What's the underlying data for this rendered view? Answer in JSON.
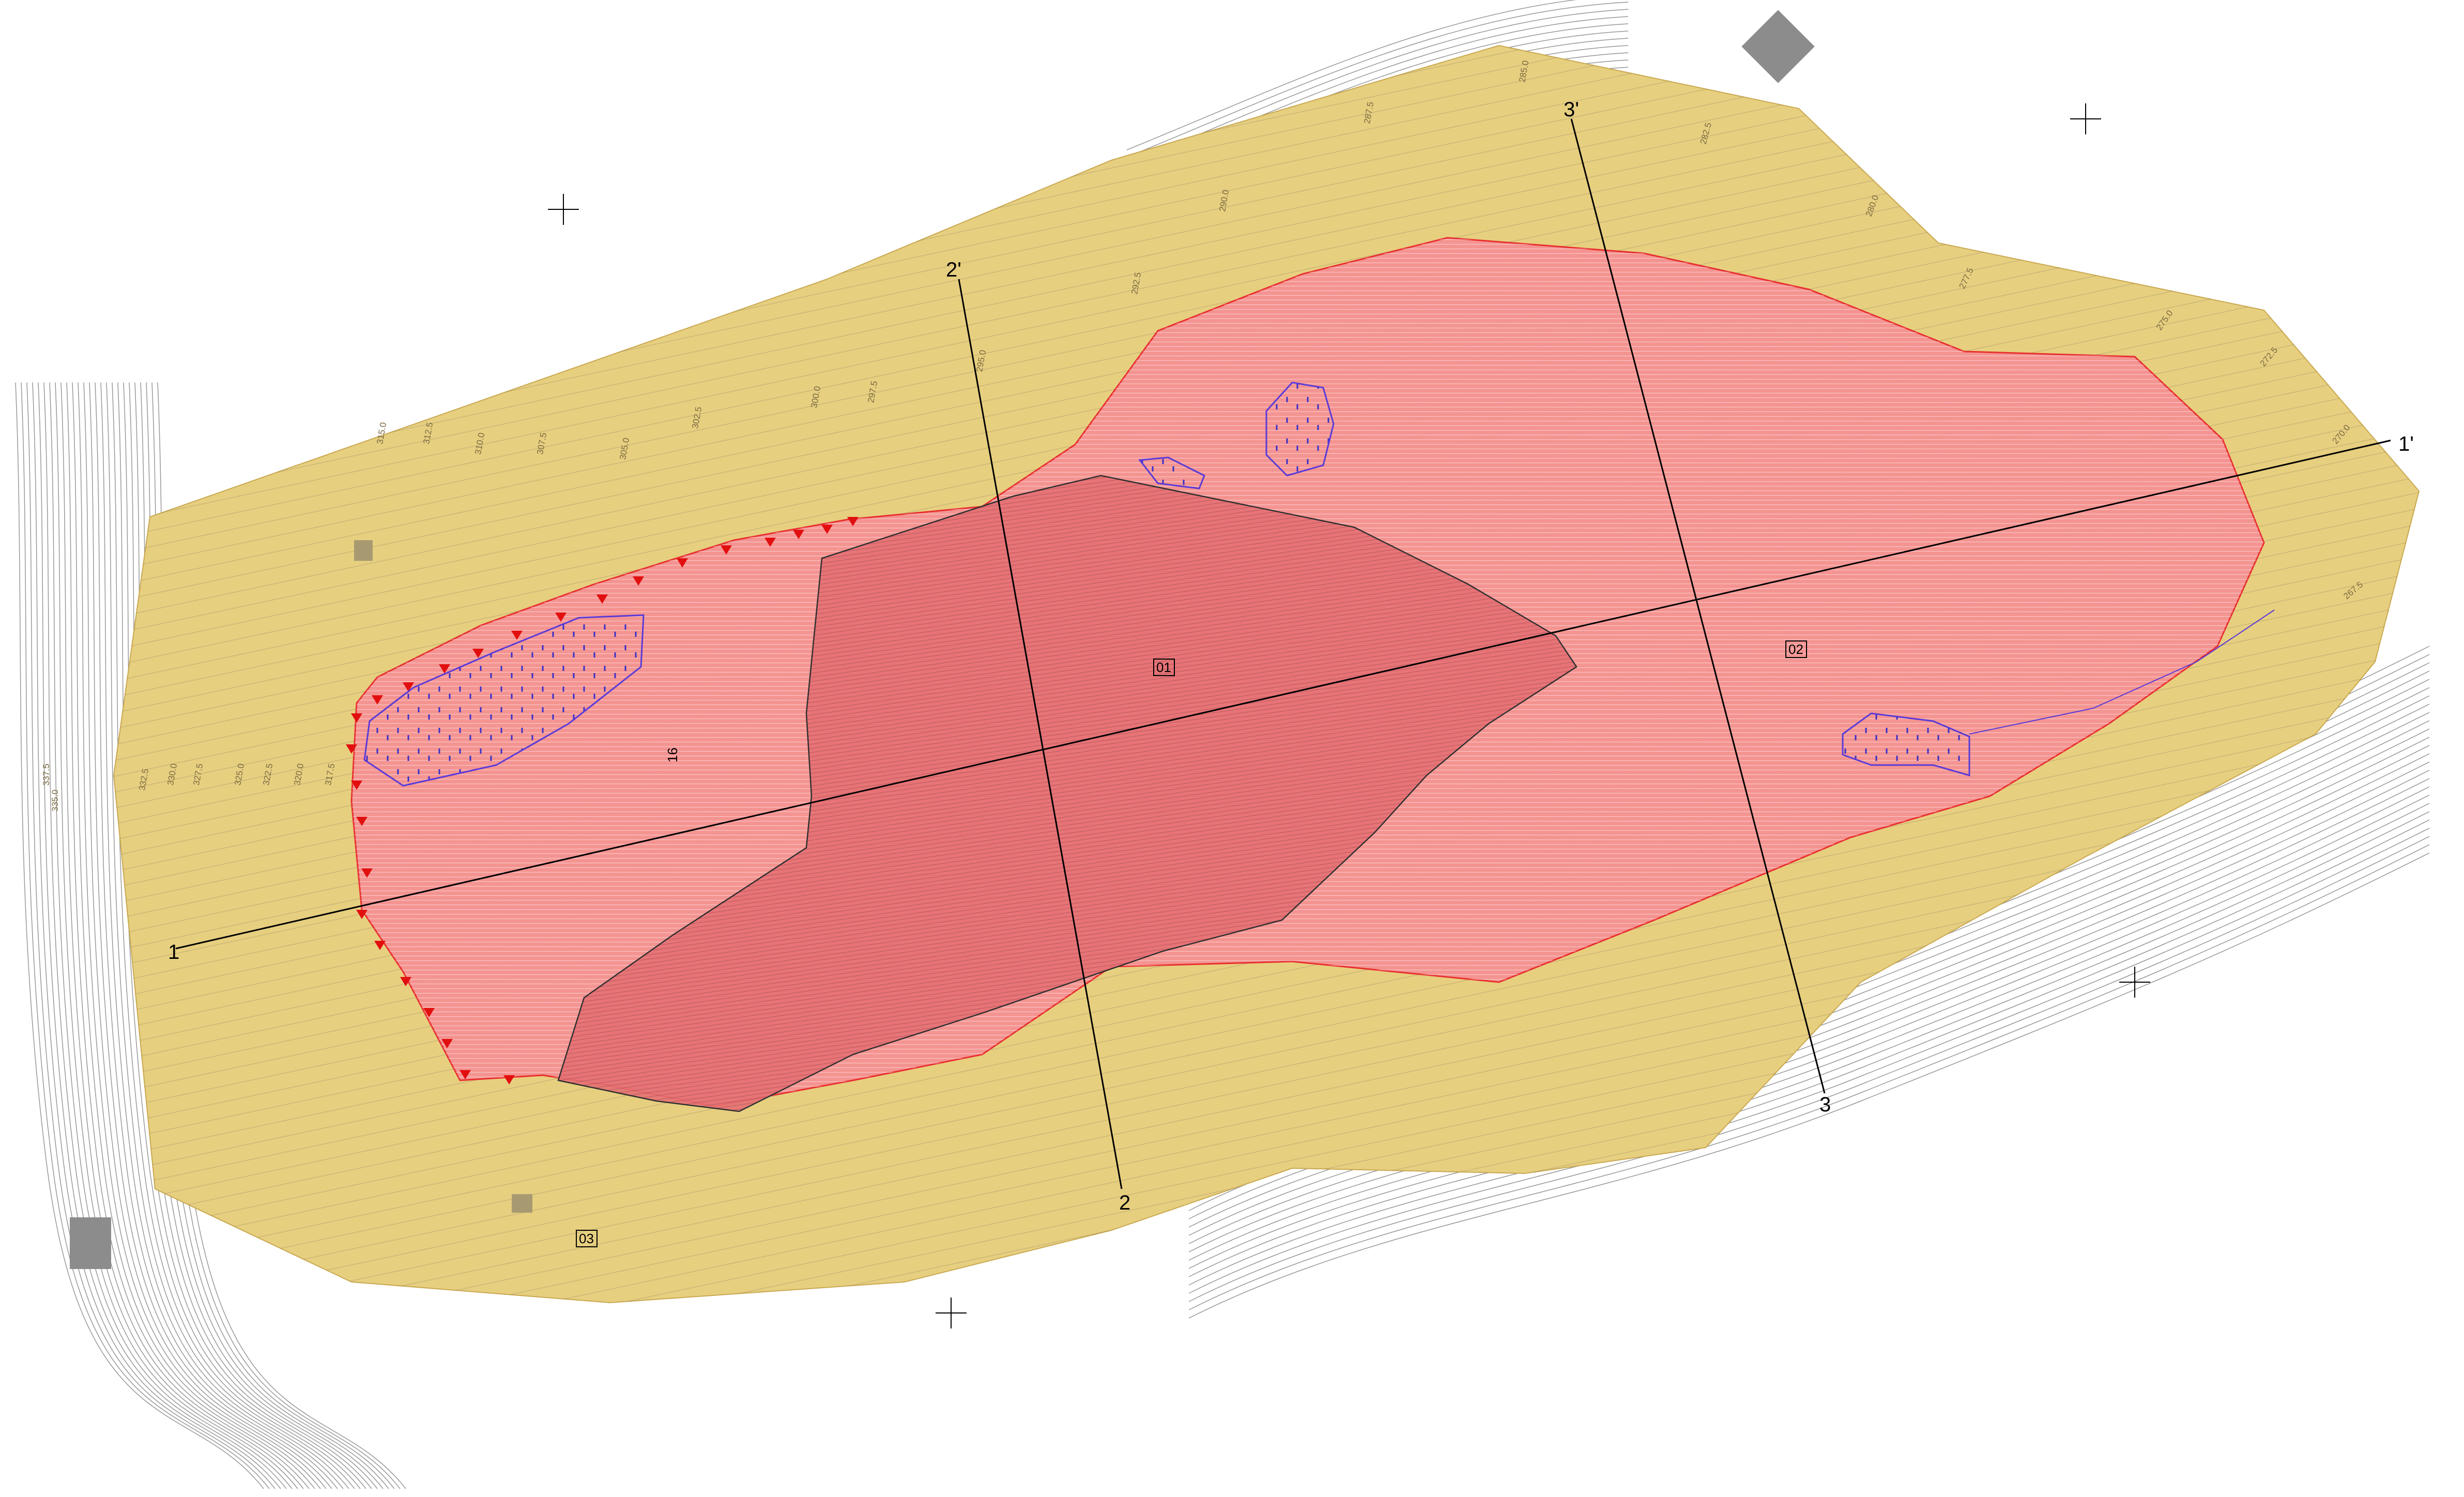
{
  "colors": {
    "background": "#ffffff",
    "buffer_zone": "#e7cf80",
    "slide_zone": "#f58f92",
    "main_scarp": "#e56f73",
    "slide_edge": "#e83030",
    "wet_area": "#5a3ad8",
    "section_line": "#000000",
    "contour": "#6b6b6b",
    "building": "#8c8c8c"
  },
  "section_lines": [
    {
      "start": "1",
      "end": "1'"
    },
    {
      "start": "2",
      "end": "2'"
    },
    {
      "start": "3",
      "end": "3'"
    }
  ],
  "zones": [
    {
      "id": "01"
    },
    {
      "id": "02"
    },
    {
      "id": "03"
    },
    {
      "id": "16"
    }
  ],
  "contour_labels": [
    "337.5",
    "335.0",
    "332.5",
    "330.0",
    "327.5",
    "325.0",
    "322.5",
    "320.0",
    "317.5",
    "315.0",
    "312.5",
    "310.0",
    "307.5",
    "305.0",
    "302.5",
    "300.0",
    "297.5",
    "295.0",
    "292.5",
    "290.0",
    "287.5",
    "285.0",
    "282.5",
    "280.0",
    "277.5",
    "275.0",
    "272.5",
    "270.0",
    "267.5"
  ],
  "icons": [
    "survey-benchmark-icon",
    "building-icon",
    "wet-area-hatch-icon",
    "scarp-triangle-icon"
  ]
}
